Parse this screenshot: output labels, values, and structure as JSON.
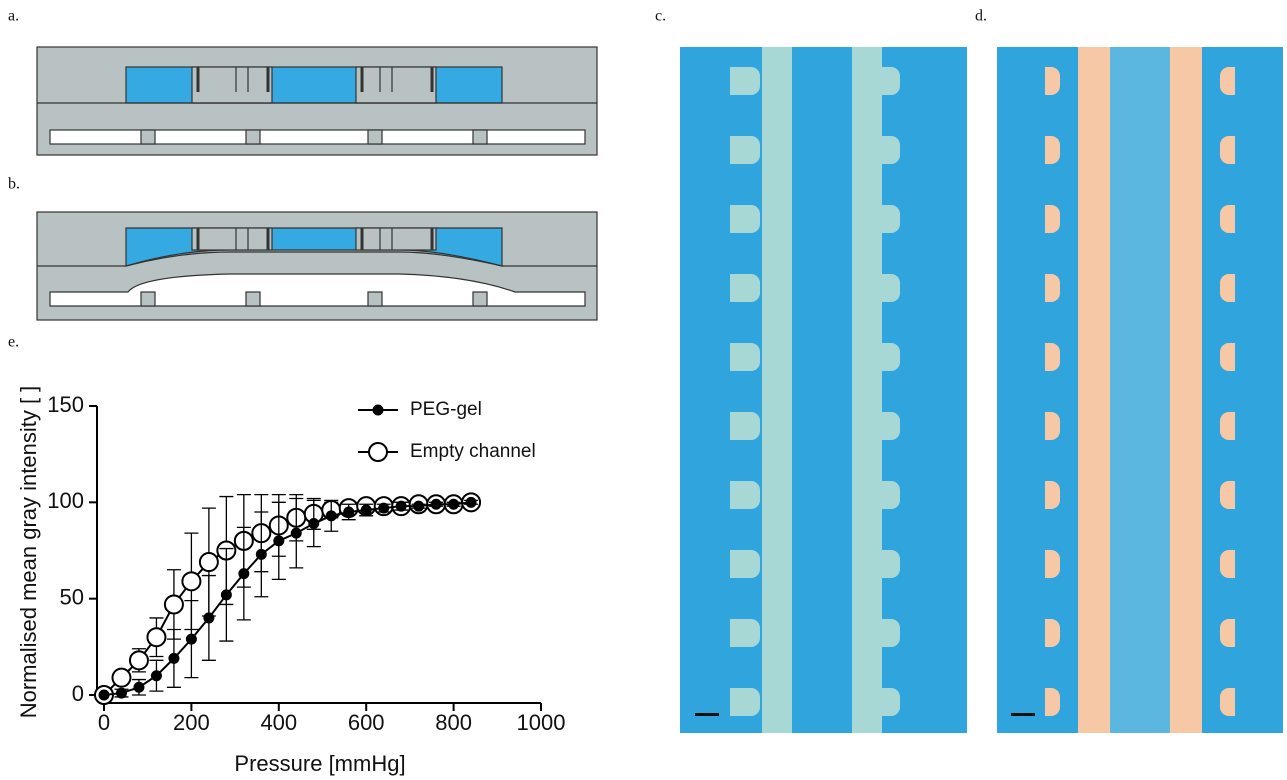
{
  "panels": {
    "a": "a.",
    "b": "b.",
    "c": "c.",
    "d": "d.",
    "e": "e."
  },
  "chart_data": {
    "type": "line",
    "xlabel": "Pressure [mmHg]",
    "ylabel": "Normalised mean gray intensity [ ]",
    "x": [
      0,
      40,
      80,
      120,
      160,
      200,
      240,
      280,
      320,
      360,
      400,
      440,
      480,
      520,
      560,
      600,
      640,
      680,
      720,
      760,
      800,
      840
    ],
    "series": [
      {
        "name": "PEG-gel",
        "color": "#000000",
        "marker": "filled",
        "values": [
          0,
          1,
          4,
          10,
          19,
          29,
          40,
          52,
          63,
          73,
          80,
          84,
          89,
          93,
          95,
          96,
          97,
          98,
          98,
          99,
          99,
          100
        ],
        "errors": [
          0,
          2,
          4,
          8,
          15,
          20,
          22,
          24,
          24,
          22,
          20,
          18,
          12,
          8,
          4,
          3,
          2,
          2,
          1,
          1,
          1,
          1
        ]
      },
      {
        "name": "Empty channel",
        "color": "#000000",
        "marker": "open",
        "values": [
          0,
          9,
          18,
          30,
          47,
          59,
          69,
          75,
          80,
          84,
          88,
          92,
          94,
          96,
          97,
          98,
          98,
          98,
          99,
          99,
          99,
          100
        ],
        "errors": [
          0,
          3,
          6,
          10,
          18,
          25,
          28,
          28,
          24,
          20,
          16,
          12,
          8,
          4,
          3,
          2,
          2,
          1,
          1,
          1,
          1,
          1
        ]
      }
    ],
    "xlim": [
      0,
      1000
    ],
    "xticks": [
      0,
      200,
      400,
      600,
      800,
      1000
    ],
    "ylim": [
      0,
      150
    ],
    "yticks": [
      0,
      50,
      100,
      150
    ],
    "legend": "upper right"
  }
}
